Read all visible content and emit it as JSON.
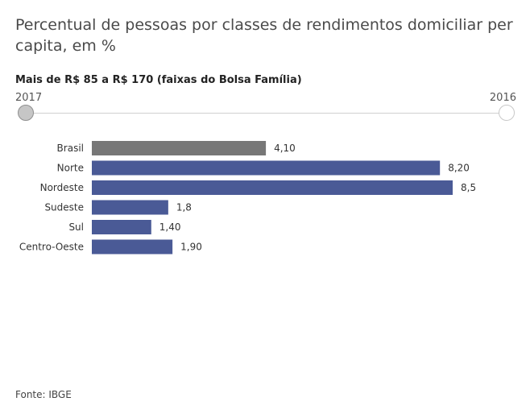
{
  "title": "Percentual de pessoas por classes de rendimentos domiciliar per capita, em %",
  "subtitle": "Mais de R$ 85 a R$ 170 (faixas do Bolsa Família)",
  "slider": {
    "start_label": "2017",
    "end_label": "2016",
    "selected": "2017"
  },
  "chart_data": {
    "type": "bar",
    "orientation": "horizontal",
    "categories": [
      "Brasil",
      "Norte",
      "Nordeste",
      "Sudeste",
      "Sul",
      "Centro-Oeste"
    ],
    "values": [
      4.1,
      8.2,
      8.5,
      1.8,
      1.4,
      1.9
    ],
    "value_labels": [
      "4,10",
      "8,20",
      "8,5",
      "1,8",
      "1,40",
      "1,90"
    ],
    "colors": [
      "#777777",
      "#4a5a96",
      "#4a5a96",
      "#4a5a96",
      "#4a5a96",
      "#4a5a96"
    ],
    "xlim": [
      0,
      8.5
    ],
    "grid": false,
    "legend": "none"
  },
  "source": "Fonte: IBGE"
}
